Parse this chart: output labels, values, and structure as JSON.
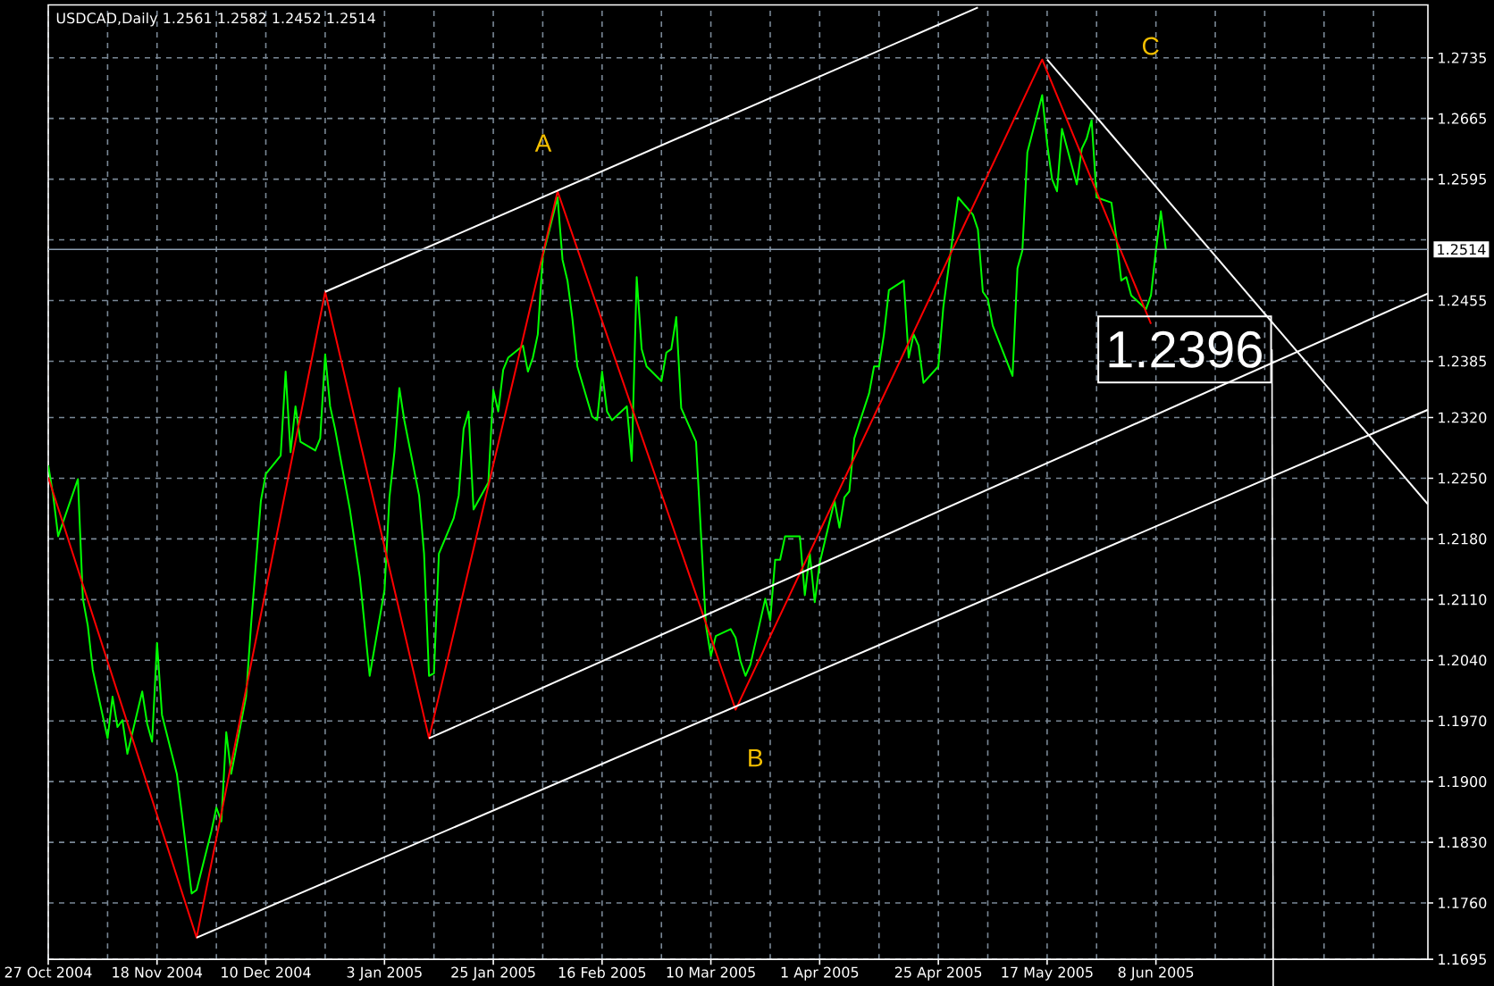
{
  "chart_data": {
    "type": "line",
    "title": "USDCAD,Daily 1.2561 1.2582 1.2452 1.2514",
    "xlim": [
      "2004-10-27",
      "2005-08-02"
    ],
    "ylim": [
      1.1695,
      1.2796
    ],
    "xticks": [
      {
        "value": "2004-10-27",
        "label": "27 Oct 2004"
      },
      {
        "value": "2004-11-08",
        "label": null
      },
      {
        "value": "2004-11-18",
        "label": "18 Nov 2004"
      },
      {
        "value": "2004-11-30",
        "label": null
      },
      {
        "value": "2004-12-10",
        "label": "10 Dec 2004"
      },
      {
        "value": "2004-12-22",
        "label": null
      },
      {
        "value": "2005-01-03",
        "label": "3 Jan 2005"
      },
      {
        "value": "2005-01-13",
        "label": null
      },
      {
        "value": "2005-01-25",
        "label": "25 Jan 2005"
      },
      {
        "value": "2005-02-04",
        "label": null
      },
      {
        "value": "2005-02-16",
        "label": "16 Feb 2005"
      },
      {
        "value": "2005-02-28",
        "label": null
      },
      {
        "value": "2005-03-10",
        "label": "10 Mar 2005"
      },
      {
        "value": "2005-03-22",
        "label": null
      },
      {
        "value": "2005-04-01",
        "label": "1 Apr 2005"
      },
      {
        "value": "2005-04-13",
        "label": null
      },
      {
        "value": "2005-04-25",
        "label": "25 Apr 2005"
      },
      {
        "value": "2005-05-05",
        "label": null
      },
      {
        "value": "2005-05-17",
        "label": "17 May 2005"
      },
      {
        "value": "2005-05-27",
        "label": null
      },
      {
        "value": "2005-06-08",
        "label": "8 Jun 2005"
      },
      {
        "value": "2005-06-20",
        "label": null
      },
      {
        "value": "2005-06-30",
        "label": null
      },
      {
        "value": "2005-07-12",
        "label": null
      },
      {
        "value": "2005-07-22",
        "label": null
      }
    ],
    "yticks": [
      1.1695,
      {
        "value": 1.176,
        "label": "1.1760"
      },
      {
        "value": 1.183,
        "label": "1.1830"
      },
      {
        "value": 1.19,
        "label": "1.1900"
      },
      {
        "value": 1.197,
        "label": "1.1970"
      },
      {
        "value": 1.204,
        "label": "1.2040"
      },
      {
        "value": 1.211,
        "label": "1.2110"
      },
      {
        "value": 1.218,
        "label": "1.2180"
      },
      {
        "value": 1.225,
        "label": "1.2250"
      },
      {
        "value": 1.232,
        "label": "1.2320"
      },
      1.2385,
      1.2455,
      {
        "value": 1.2525,
        "label": null
      },
      1.2595,
      1.2665,
      1.2735
    ],
    "grid": true,
    "series": [
      {
        "color": "#00ff00",
        "x": [
          "2004-10-27",
          "2004-10-28",
          "2004-10-29",
          "2004-11-02",
          "2004-11-03",
          "2004-11-04",
          "2004-11-05",
          "2004-11-08",
          "2004-11-09",
          "2004-11-10",
          "2004-11-11",
          "2004-11-12",
          "2004-11-15",
          "2004-11-16",
          "2004-11-17",
          "2004-11-18",
          "2004-11-19",
          "2004-11-22",
          "2004-11-23",
          "2004-11-25",
          "2004-11-26",
          "2004-11-29",
          "2004-11-30",
          "2004-12-01",
          "2004-12-02",
          "2004-12-03",
          "2004-12-06",
          "2004-12-07",
          "2004-12-09",
          "2004-12-10",
          "2004-12-13",
          "2004-12-14",
          "2004-12-15",
          "2004-12-16",
          "2004-12-17",
          "2004-12-20",
          "2004-12-21",
          "2004-12-22",
          "2004-12-23",
          "2004-12-24",
          "2004-12-27",
          "2004-12-29",
          "2004-12-31",
          "2005-01-03",
          "2005-01-04",
          "2005-01-05",
          "2005-01-06",
          "2005-01-07",
          "2005-01-10",
          "2005-01-11",
          "2005-01-12",
          "2005-01-13",
          "2005-01-14",
          "2005-01-17",
          "2005-01-18",
          "2005-01-19",
          "2005-01-20",
          "2005-01-21",
          "2005-01-24",
          "2005-01-25",
          "2005-01-26",
          "2005-01-27",
          "2005-01-28",
          "2005-01-31",
          "2005-02-01",
          "2005-02-02",
          "2005-02-03",
          "2005-02-04",
          "2005-02-07",
          "2005-02-08",
          "2005-02-09",
          "2005-02-10",
          "2005-02-11",
          "2005-02-14",
          "2005-02-15",
          "2005-02-16",
          "2005-02-17",
          "2005-02-18",
          "2005-02-21",
          "2005-02-22",
          "2005-02-23",
          "2005-02-24",
          "2005-02-25",
          "2005-02-28",
          "2005-03-01",
          "2005-03-02",
          "2005-03-03",
          "2005-03-04",
          "2005-03-07",
          "2005-03-09",
          "2005-03-10",
          "2005-03-11",
          "2005-03-14",
          "2005-03-15",
          "2005-03-16",
          "2005-03-17",
          "2005-03-18",
          "2005-03-21",
          "2005-03-22",
          "2005-03-23",
          "2005-03-24",
          "2005-03-25",
          "2005-03-28",
          "2005-03-29",
          "2005-03-30",
          "2005-03-31",
          "2005-04-01",
          "2005-04-04",
          "2005-04-05",
          "2005-04-06",
          "2005-04-07",
          "2005-04-08",
          "2005-04-11",
          "2005-04-12",
          "2005-04-13",
          "2005-04-14",
          "2005-04-15",
          "2005-04-18",
          "2005-04-19",
          "2005-04-20",
          "2005-04-21",
          "2005-04-22",
          "2005-04-25",
          "2005-04-26",
          "2005-04-28",
          "2005-04-29",
          "2005-05-02",
          "2005-05-03",
          "2005-05-04",
          "2005-05-05",
          "2005-05-06",
          "2005-05-10",
          "2005-05-11",
          "2005-05-12",
          "2005-05-13",
          "2005-05-16",
          "2005-05-17",
          "2005-05-18",
          "2005-05-19",
          "2005-05-20",
          "2005-05-23",
          "2005-05-24",
          "2005-05-25",
          "2005-05-26",
          "2005-05-27",
          "2005-05-30",
          "2005-05-31",
          "2005-06-01",
          "2005-06-02",
          "2005-06-03",
          "2005-06-06",
          "2005-06-07",
          "2005-06-08",
          "2005-06-09",
          "2005-06-10"
        ],
        "values": [
          1.2265,
          1.223,
          1.2183,
          1.2249,
          1.2111,
          1.208,
          1.2029,
          1.195,
          1.1998,
          1.1963,
          1.1971,
          1.1932,
          1.2004,
          1.1967,
          1.1946,
          1.206,
          1.1977,
          1.1909,
          1.1864,
          1.1771,
          1.1775,
          1.1843,
          1.187,
          1.1854,
          1.1957,
          1.1909,
          1.1998,
          1.208,
          1.2224,
          1.2255,
          1.2276,
          1.2373,
          1.228,
          1.2333,
          1.2292,
          1.2282,
          1.2296,
          1.2393,
          1.2333,
          1.2307,
          1.2214,
          1.2136,
          1.2022,
          1.2121,
          1.2228,
          1.228,
          1.2354,
          1.2317,
          1.223,
          1.2163,
          1.2022,
          1.2025,
          1.2163,
          1.2204,
          1.223,
          1.2307,
          1.2327,
          1.2214,
          1.2245,
          1.2352,
          1.2327,
          1.2375,
          1.2389,
          1.2403,
          1.2373,
          1.2389,
          1.2416,
          1.2506,
          1.2574,
          1.2502,
          1.2478,
          1.2434,
          1.2379,
          1.2321,
          1.2317,
          1.2373,
          1.2327,
          1.2317,
          1.2333,
          1.227,
          1.2482,
          1.2399,
          1.2379,
          1.2362,
          1.2395,
          1.2399,
          1.2436,
          1.2331,
          1.2292,
          1.208,
          1.2045,
          1.2068,
          1.2076,
          1.2066,
          1.2039,
          1.2022,
          1.2035,
          1.2111,
          1.2086,
          1.2156,
          1.2156,
          1.2183,
          1.2183,
          1.2115,
          1.2163,
          1.2107,
          1.2152,
          1.2224,
          1.2193,
          1.2228,
          1.2235,
          1.2296,
          1.2348,
          1.2379,
          1.2379,
          1.2416,
          1.2467,
          1.2478,
          1.2389,
          1.2416,
          1.2403,
          1.236,
          1.2379,
          1.2447,
          1.2533,
          1.2574,
          1.2554,
          1.2537,
          1.2465,
          1.2457,
          1.2426,
          1.2368,
          1.2492,
          1.2513,
          1.2626,
          1.2692,
          1.2636,
          1.2595,
          1.2581,
          1.2653,
          1.2589,
          1.263,
          1.2642,
          1.2663,
          1.2574,
          1.2568,
          1.2527,
          1.2478,
          1.2482,
          1.2461,
          1.2445,
          1.2461,
          1.2513,
          1.2558,
          1.2514
        ]
      },
      {
        "color": "#ff0000",
        "x": [
          "2004-10-27",
          "2004-11-26",
          "2004-12-22",
          "2005-01-12",
          "2005-02-07",
          "2005-03-15",
          "2005-05-16",
          "2005-06-07"
        ],
        "values": [
          1.2251,
          1.172,
          1.2465,
          1.195,
          1.2581,
          1.1983,
          1.2733,
          1.2428
        ]
      },
      {
        "color": "#ffffff",
        "x": [
          "2004-12-22",
          "2005-05-03"
        ],
        "values": [
          1.2465,
          1.2793
        ]
      },
      {
        "color": "#ffffff",
        "x": [
          "2005-01-12",
          "2005-08-02"
        ],
        "values": [
          1.195,
          1.2463
        ]
      },
      {
        "color": "#ffffff",
        "x": [
          "2004-11-26",
          "2005-08-02"
        ],
        "values": [
          1.172,
          1.2329
        ]
      },
      {
        "color": "#ffffff",
        "x": [
          "2005-05-17",
          "2005-08-02"
        ],
        "values": [
          1.2733,
          1.222
        ]
      }
    ],
    "ref_lines": [
      {
        "axis": "y",
        "value": 1.2514,
        "label": "1.2514",
        "color": "#8c9db0"
      }
    ],
    "annotations": [
      {
        "text": "A",
        "x": "2005-02-07",
        "y": 1.2581
      },
      {
        "text": "B",
        "x": "2005-03-15",
        "y": 1.1983
      },
      "C",
      "1.2396"
    ]
  }
}
